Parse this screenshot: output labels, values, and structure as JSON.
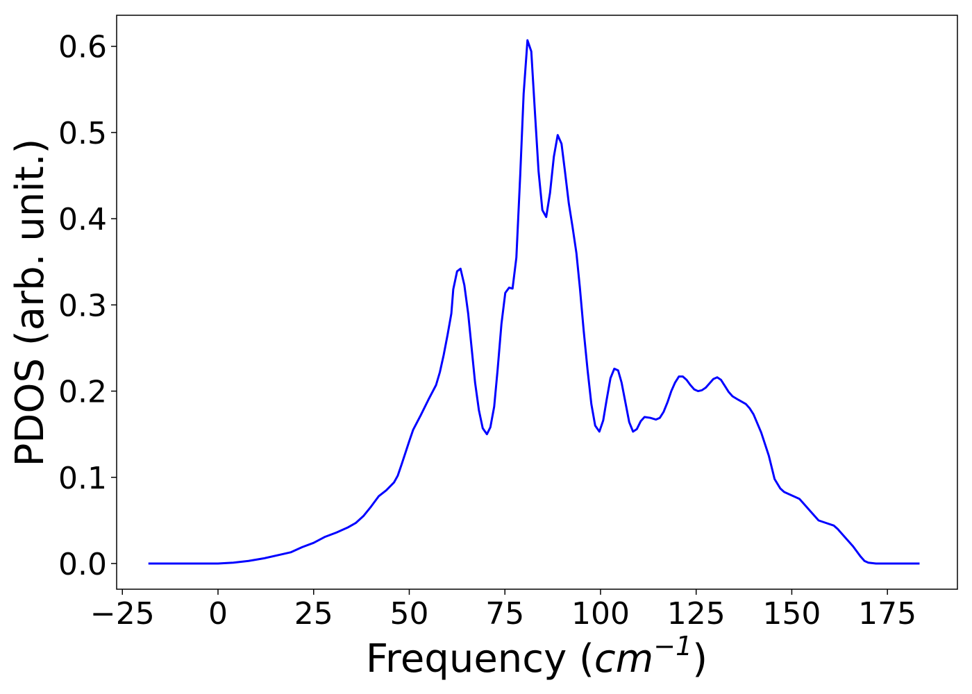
{
  "chart_data": {
    "type": "line",
    "xlabel": [
      "Frequency (",
      "cm",
      "−1",
      ")"
    ],
    "ylabel": "PDOS (arb. unit.)",
    "xlim": [
      -26.5,
      193.3
    ],
    "ylim": [
      -0.0298,
      0.636
    ],
    "xticks": [
      {
        "value": -25,
        "label": "−25"
      },
      0,
      25,
      50,
      75,
      100,
      125,
      150,
      175
    ],
    "yticks": [
      {
        "value": 0,
        "label": "0.0"
      },
      0.1,
      0.2,
      0.3,
      0.4,
      0.5,
      0.6
    ],
    "grid": false,
    "series": [
      {
        "name": "PDOS",
        "color": "#0000ff",
        "x": [
          -18.2,
          -10,
          0,
          4,
          8,
          12,
          16,
          19,
          22,
          25,
          28,
          31,
          34,
          36,
          38,
          40,
          42,
          44,
          46,
          47,
          48,
          50,
          51,
          53,
          55,
          57,
          58,
          59,
          60,
          61,
          61.5,
          62.5,
          63.4,
          64.4,
          65.4,
          66.3,
          67.2,
          68.2,
          69.2,
          70.3,
          71.2,
          72.2,
          73.1,
          74.1,
          75.1,
          76.1,
          77,
          78,
          79,
          79.9,
          80.9,
          81.9,
          82.9,
          83.8,
          84.8,
          85.8,
          86.8,
          87.8,
          88.8,
          89.8,
          90.7,
          91.7,
          92.7,
          93.7,
          94.6,
          95.6,
          96.6,
          97.6,
          98.6,
          99.7,
          100.7,
          101.6,
          102.6,
          103.6,
          104.6,
          105.5,
          106.5,
          107.5,
          108.5,
          109.5,
          110.5,
          111.5,
          113,
          114.5,
          115.5,
          116.5,
          117.5,
          118.5,
          119.5,
          120.5,
          121.5,
          122.5,
          123.5,
          124.5,
          125.5,
          126.5,
          127.5,
          128.5,
          129.5,
          130.5,
          131.5,
          132.5,
          133.5,
          134.5,
          136,
          138,
          139,
          140,
          142,
          144,
          145.5,
          147,
          148,
          150,
          152,
          153,
          155,
          157,
          159,
          161,
          162,
          164,
          166,
          168,
          169,
          170,
          172,
          180,
          183.4
        ],
        "values": [
          0,
          0,
          0,
          0.001,
          0.003,
          0.006,
          0.01,
          0.013,
          0.019,
          0.024,
          0.031,
          0.036,
          0.042,
          0.047,
          0.055,
          0.066,
          0.078,
          0.085,
          0.094,
          0.102,
          0.115,
          0.142,
          0.155,
          0.172,
          0.19,
          0.207,
          0.222,
          0.242,
          0.265,
          0.29,
          0.318,
          0.339,
          0.342,
          0.323,
          0.29,
          0.25,
          0.21,
          0.178,
          0.157,
          0.15,
          0.158,
          0.182,
          0.225,
          0.278,
          0.314,
          0.32,
          0.319,
          0.355,
          0.45,
          0.545,
          0.607,
          0.594,
          0.52,
          0.455,
          0.41,
          0.402,
          0.43,
          0.472,
          0.497,
          0.487,
          0.455,
          0.418,
          0.39,
          0.36,
          0.32,
          0.27,
          0.225,
          0.185,
          0.16,
          0.153,
          0.166,
          0.19,
          0.215,
          0.226,
          0.224,
          0.21,
          0.187,
          0.164,
          0.153,
          0.156,
          0.165,
          0.17,
          0.169,
          0.167,
          0.169,
          0.176,
          0.187,
          0.2,
          0.21,
          0.217,
          0.217,
          0.213,
          0.207,
          0.202,
          0.2,
          0.201,
          0.204,
          0.209,
          0.214,
          0.216,
          0.213,
          0.206,
          0.199,
          0.194,
          0.19,
          0.185,
          0.18,
          0.173,
          0.152,
          0.125,
          0.098,
          0.087,
          0.083,
          0.079,
          0.075,
          0.07,
          0.06,
          0.05,
          0.047,
          0.044,
          0.04,
          0.03,
          0.02,
          0.008,
          0.003,
          0.001,
          0,
          0,
          0
        ]
      }
    ]
  }
}
